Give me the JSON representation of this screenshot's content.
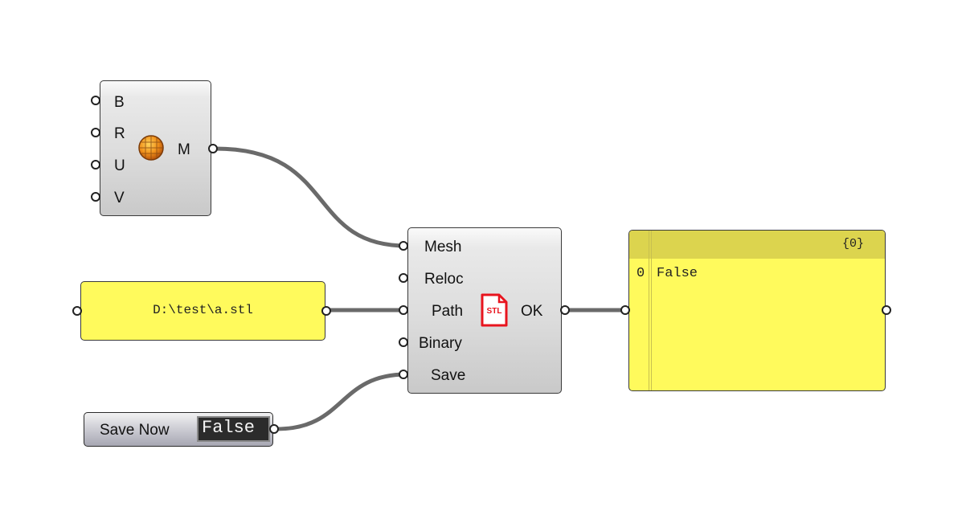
{
  "mesh_component": {
    "inputs": [
      "B",
      "R",
      "U",
      "V"
    ],
    "output": "M",
    "icon": "mesh-sphere-icon"
  },
  "path_panel": {
    "value": "D:\\test\\a.stl"
  },
  "toggle": {
    "label": "Save Now",
    "value": "False"
  },
  "stl_export": {
    "inputs": [
      "Mesh",
      "Reloc",
      "Path",
      "Binary",
      "Save"
    ],
    "output": "OK",
    "icon": "stl-file-icon",
    "icon_text": "STL",
    "icon_color": "#e8141e"
  },
  "output_panel": {
    "path": "{0}",
    "items": [
      {
        "index": "0",
        "value": "False"
      }
    ]
  },
  "colors": {
    "wire": "#6a6a6a",
    "panel_fill": "#fffa5c",
    "panel_header": "#dcd44e"
  }
}
